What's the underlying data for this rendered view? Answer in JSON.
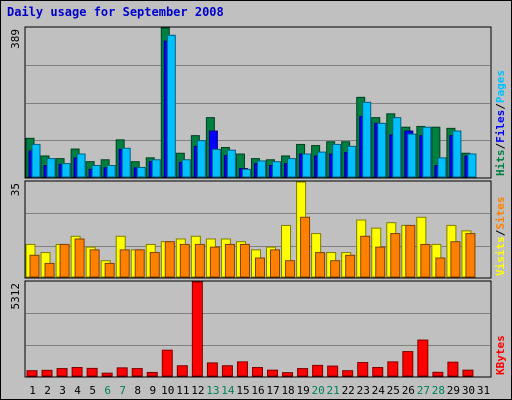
{
  "title": "Daily usage for September 2008",
  "days": [
    "1",
    "2",
    "3",
    "4",
    "5",
    "6",
    "7",
    "8",
    "9",
    "10",
    "11",
    "12",
    "13",
    "14",
    "15",
    "16",
    "17",
    "18",
    "19",
    "20",
    "21",
    "22",
    "23",
    "24",
    "25",
    "26",
    "27",
    "28",
    "29",
    "30",
    "31"
  ],
  "weekend_days": [
    6,
    7,
    13,
    14,
    20,
    21,
    27,
    28
  ],
  "colors": {
    "background": "#c0c0c0",
    "hits": "#008040",
    "files": "#0000ff",
    "pages": "#00c0ff",
    "visits": "#ffff00",
    "sites": "#ff8000",
    "kbytes": "#ff0000",
    "day_label": "#000000",
    "weekend_label": "#00805c"
  },
  "chart_data": [
    {
      "type": "bar",
      "panel": "hits-files-pages",
      "ymax_label": "389",
      "ylim": [
        0,
        389
      ],
      "grid": true,
      "legend": [
        "Pages",
        "/",
        "Files",
        "/",
        "Hits"
      ],
      "categories": [
        "1",
        "2",
        "3",
        "4",
        "5",
        "6",
        "7",
        "8",
        "9",
        "10",
        "11",
        "12",
        "13",
        "14",
        "15",
        "16",
        "17",
        "18",
        "19",
        "20",
        "21",
        "22",
        "23",
        "24",
        "25",
        "26",
        "27",
        "28",
        "29",
        "30",
        "31"
      ],
      "series": [
        {
          "name": "Hits",
          "values": [
            101,
            55,
            48,
            73,
            40,
            45,
            97,
            40,
            50,
            389,
            62,
            108,
            155,
            77,
            60,
            48,
            45,
            55,
            85,
            82,
            92,
            92,
            208,
            155,
            165,
            130,
            132,
            130,
            127,
            62,
            0
          ]
        },
        {
          "name": "Files",
          "values": [
            68,
            30,
            33,
            50,
            20,
            24,
            72,
            24,
            40,
            355,
            38,
            80,
            120,
            56,
            22,
            35,
            30,
            35,
            60,
            55,
            60,
            64,
            158,
            140,
            110,
            120,
            108,
            30,
            108,
            55,
            0
          ]
        },
        {
          "name": "Pages",
          "values": [
            85,
            48,
            35,
            60,
            30,
            30,
            75,
            25,
            45,
            370,
            45,
            95,
            72,
            70,
            20,
            42,
            40,
            48,
            60,
            65,
            85,
            80,
            195,
            140,
            155,
            112,
            130,
            50,
            120,
            60,
            0
          ]
        }
      ]
    },
    {
      "type": "bar",
      "panel": "visits-sites",
      "ymax_label": "35",
      "ylim": [
        0,
        35
      ],
      "grid": true,
      "legend": [
        "Sites",
        "/",
        "Visits"
      ],
      "categories": [
        "1",
        "2",
        "3",
        "4",
        "5",
        "6",
        "7",
        "8",
        "9",
        "10",
        "11",
        "12",
        "13",
        "14",
        "15",
        "16",
        "17",
        "18",
        "19",
        "20",
        "21",
        "22",
        "23",
        "24",
        "25",
        "26",
        "27",
        "28",
        "29",
        "30",
        "31"
      ],
      "series": [
        {
          "name": "Visits",
          "values": [
            12,
            9,
            12,
            15,
            11,
            6,
            15,
            10,
            12,
            13,
            14,
            15,
            14,
            14,
            13,
            10,
            11,
            19,
            35,
            16,
            9,
            9,
            21,
            18,
            20,
            19,
            22,
            12,
            19,
            17,
            0
          ]
        },
        {
          "name": "Sites",
          "values": [
            8,
            5,
            12,
            14,
            10,
            5,
            10,
            10,
            9,
            13,
            12,
            12,
            11,
            12,
            12,
            7,
            10,
            6,
            22,
            9,
            6,
            8,
            15,
            11,
            16,
            19,
            12,
            7,
            13,
            16,
            0
          ]
        }
      ]
    },
    {
      "type": "bar",
      "panel": "kbytes",
      "ymax_label": "5312",
      "ylim": [
        0,
        5312
      ],
      "grid": true,
      "legend": [
        "KBytes"
      ],
      "categories": [
        "1",
        "2",
        "3",
        "4",
        "5",
        "6",
        "7",
        "8",
        "9",
        "10",
        "11",
        "12",
        "13",
        "14",
        "15",
        "16",
        "17",
        "18",
        "19",
        "20",
        "21",
        "22",
        "23",
        "24",
        "25",
        "26",
        "27",
        "28",
        "29",
        "30",
        "31"
      ],
      "series": [
        {
          "name": "KBytes",
          "values": [
            300,
            320,
            420,
            480,
            430,
            160,
            460,
            420,
            200,
            1460,
            580,
            5312,
            740,
            580,
            800,
            480,
            330,
            190,
            420,
            600,
            560,
            300,
            760,
            480,
            800,
            1380,
            2030,
            210,
            780,
            330,
            0
          ]
        }
      ]
    }
  ]
}
